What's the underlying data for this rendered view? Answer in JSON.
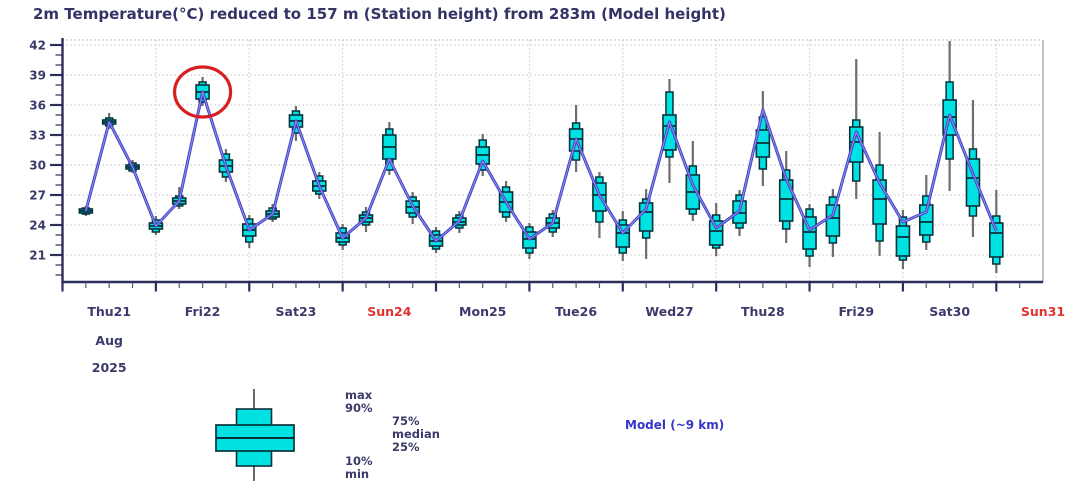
{
  "title": "2m Temperature(°C) reduced to 157 m (Station height) from 283m (Model height)",
  "colors": {
    "background": "#ffffff",
    "title_text": "#333366",
    "axis": "#2d2d5c",
    "tick_label": "#3b3b6b",
    "weekend_label": "#e23333",
    "grid": "#c4c4cc",
    "frame": "#a8a8b8",
    "box_fill": "#00e1e1",
    "box_border": "#06323c",
    "whisker": "#6e6e6e",
    "model_line": "#4343c8",
    "model_line_core": "#9090e8",
    "model_label_text": "#3535cb",
    "annotation_circle": "#d81f1f"
  },
  "y_axis": {
    "tick_values": [
      21,
      24,
      27,
      30,
      33,
      36,
      39,
      42
    ],
    "minor_step": 1,
    "domain_min": 18.3,
    "domain_max": 42.5
  },
  "x_axis": {
    "hours_total": 252,
    "hours_per_day": 24,
    "minor_step_hours": 6,
    "days": [
      {
        "label": "Thu21",
        "weekend": false
      },
      {
        "label": "Fri22",
        "weekend": false
      },
      {
        "label": "Sat23",
        "weekend": false
      },
      {
        "label": "Sun24",
        "weekend": true
      },
      {
        "label": "Mon25",
        "weekend": false
      },
      {
        "label": "Tue26",
        "weekend": false
      },
      {
        "label": "Wed27",
        "weekend": false
      },
      {
        "label": "Thu28",
        "weekend": false
      },
      {
        "label": "Fri29",
        "weekend": false
      },
      {
        "label": "Sat30",
        "weekend": false
      },
      {
        "label": "Sun31",
        "weekend": true
      }
    ],
    "month_label": "Aug",
    "year_label": "2025"
  },
  "legend": {
    "max_label": "max",
    "p90_label": "90%",
    "p75_label": "75%",
    "median_label": "median",
    "p25_label": "25%",
    "p10_label": "10%",
    "min_label": "min",
    "model_label": "Model (~9 km)"
  },
  "annotation": {
    "shape": "ellipse",
    "hour": 36,
    "value": 37.3
  },
  "chart_data": {
    "type": "boxplot-timeseries",
    "title": "2m Temperature(°C) reduced to 157 m (Station height) from 283m (Model height)",
    "x_unit": "hours since Thu 21 Aug 2025 00:00",
    "ylabel": "Temperature (°C)",
    "ylim": [
      18.3,
      42.5
    ],
    "xlim_hours": [
      0,
      252
    ],
    "grid": true,
    "legend_position": "bottom",
    "boxes": {
      "columns": [
        "hour",
        "min",
        "p10",
        "p25",
        "median",
        "p75",
        "p90",
        "max",
        "model"
      ],
      "rows": [
        [
          6,
          24.9,
          25.1,
          25.2,
          25.4,
          25.6,
          25.7,
          25.9,
          25.4
        ],
        [
          12,
          33.6,
          33.9,
          34.1,
          34.3,
          34.5,
          34.7,
          35.2,
          34.3
        ],
        [
          18,
          29.2,
          29.4,
          29.6,
          29.8,
          30.0,
          30.2,
          30.5,
          29.8
        ],
        [
          24,
          23.0,
          23.3,
          23.6,
          23.9,
          24.2,
          24.5,
          24.9,
          23.9
        ],
        [
          30,
          25.6,
          25.9,
          26.1,
          26.4,
          26.7,
          26.9,
          27.8,
          26.4
        ],
        [
          36,
          35.9,
          36.3,
          36.6,
          37.3,
          38.0,
          38.3,
          38.8,
          37.3
        ],
        [
          42,
          28.3,
          28.8,
          29.3,
          29.9,
          30.5,
          31.1,
          31.6,
          29.9
        ],
        [
          48,
          21.7,
          22.3,
          22.9,
          23.5,
          24.1,
          24.6,
          25.0,
          23.5
        ],
        [
          54,
          24.3,
          24.6,
          24.8,
          25.1,
          25.4,
          25.7,
          26.1,
          25.1
        ],
        [
          60,
          32.4,
          33.2,
          33.8,
          34.4,
          35.0,
          35.4,
          35.9,
          34.4
        ],
        [
          66,
          26.6,
          27.1,
          27.4,
          27.9,
          28.4,
          28.9,
          29.3,
          27.9
        ],
        [
          72,
          21.5,
          22.0,
          22.3,
          22.7,
          23.2,
          23.7,
          24.1,
          22.7
        ],
        [
          78,
          23.3,
          24.0,
          24.3,
          24.7,
          25.0,
          25.3,
          25.8,
          24.7
        ],
        [
          84,
          29.0,
          29.5,
          30.6,
          31.8,
          33.0,
          33.6,
          34.3,
          30.6
        ],
        [
          90,
          24.1,
          24.8,
          25.2,
          25.8,
          26.4,
          26.8,
          27.3,
          25.9
        ],
        [
          96,
          21.2,
          21.6,
          21.9,
          22.4,
          23.0,
          23.4,
          23.8,
          22.4
        ],
        [
          102,
          23.2,
          23.7,
          24.0,
          24.3,
          24.7,
          25.0,
          25.4,
          24.4
        ],
        [
          108,
          28.9,
          29.5,
          30.1,
          31.0,
          31.8,
          32.5,
          33.1,
          30.4
        ],
        [
          114,
          24.3,
          24.8,
          25.3,
          26.3,
          27.3,
          27.8,
          28.4,
          26.3
        ],
        [
          120,
          20.6,
          21.2,
          21.7,
          22.6,
          23.3,
          23.8,
          24.2,
          22.6
        ],
        [
          126,
          22.8,
          23.3,
          23.7,
          24.2,
          24.7,
          25.1,
          25.5,
          24.2
        ],
        [
          132,
          29.3,
          30.5,
          31.4,
          32.6,
          33.6,
          34.2,
          36.0,
          32.6
        ],
        [
          138,
          22.7,
          24.3,
          25.4,
          27.0,
          28.2,
          28.8,
          29.3,
          27.0
        ],
        [
          144,
          20.4,
          21.2,
          21.8,
          23.2,
          24.0,
          24.5,
          25.4,
          23.2
        ],
        [
          150,
          20.6,
          22.7,
          23.4,
          25.3,
          26.2,
          26.6,
          27.6,
          25.6
        ],
        [
          156,
          28.2,
          30.8,
          31.5,
          33.9,
          35.0,
          37.3,
          38.6,
          34.3
        ],
        [
          162,
          24.4,
          25.1,
          25.6,
          27.3,
          29.0,
          29.9,
          32.4,
          28.0
        ],
        [
          168,
          20.9,
          21.7,
          22.0,
          23.4,
          24.4,
          25.0,
          26.2,
          23.7
        ],
        [
          174,
          22.9,
          23.7,
          24.2,
          25.2,
          26.4,
          27.0,
          27.5,
          25.4
        ],
        [
          180,
          27.9,
          29.6,
          30.8,
          32.2,
          33.5,
          34.8,
          37.4,
          35.5
        ],
        [
          186,
          22.2,
          23.6,
          24.4,
          26.6,
          28.5,
          29.5,
          31.4,
          28.6
        ],
        [
          192,
          19.8,
          20.9,
          21.6,
          23.3,
          24.8,
          25.6,
          26.1,
          23.5
        ],
        [
          198,
          20.8,
          22.2,
          22.9,
          24.7,
          26.0,
          26.8,
          27.6,
          25.0
        ],
        [
          204,
          26.6,
          28.4,
          30.3,
          32.3,
          33.8,
          34.5,
          40.6,
          33.3
        ],
        [
          210,
          20.9,
          22.4,
          24.1,
          26.6,
          28.5,
          30.0,
          33.3,
          28.2
        ],
        [
          216,
          19.6,
          20.5,
          20.9,
          22.8,
          23.9,
          24.8,
          25.5,
          24.3
        ],
        [
          222,
          21.5,
          22.3,
          23.0,
          24.3,
          26.0,
          26.9,
          29.0,
          25.3
        ],
        [
          228,
          27.4,
          30.6,
          33.0,
          34.8,
          36.5,
          38.3,
          42.4,
          35.0
        ],
        [
          234,
          22.8,
          24.9,
          25.9,
          28.7,
          30.6,
          31.6,
          36.5,
          29.1
        ],
        [
          240,
          19.2,
          20.1,
          20.8,
          23.2,
          24.2,
          24.9,
          27.5,
          23.4
        ]
      ]
    },
    "model_series_name": "Model (~9 km)"
  }
}
